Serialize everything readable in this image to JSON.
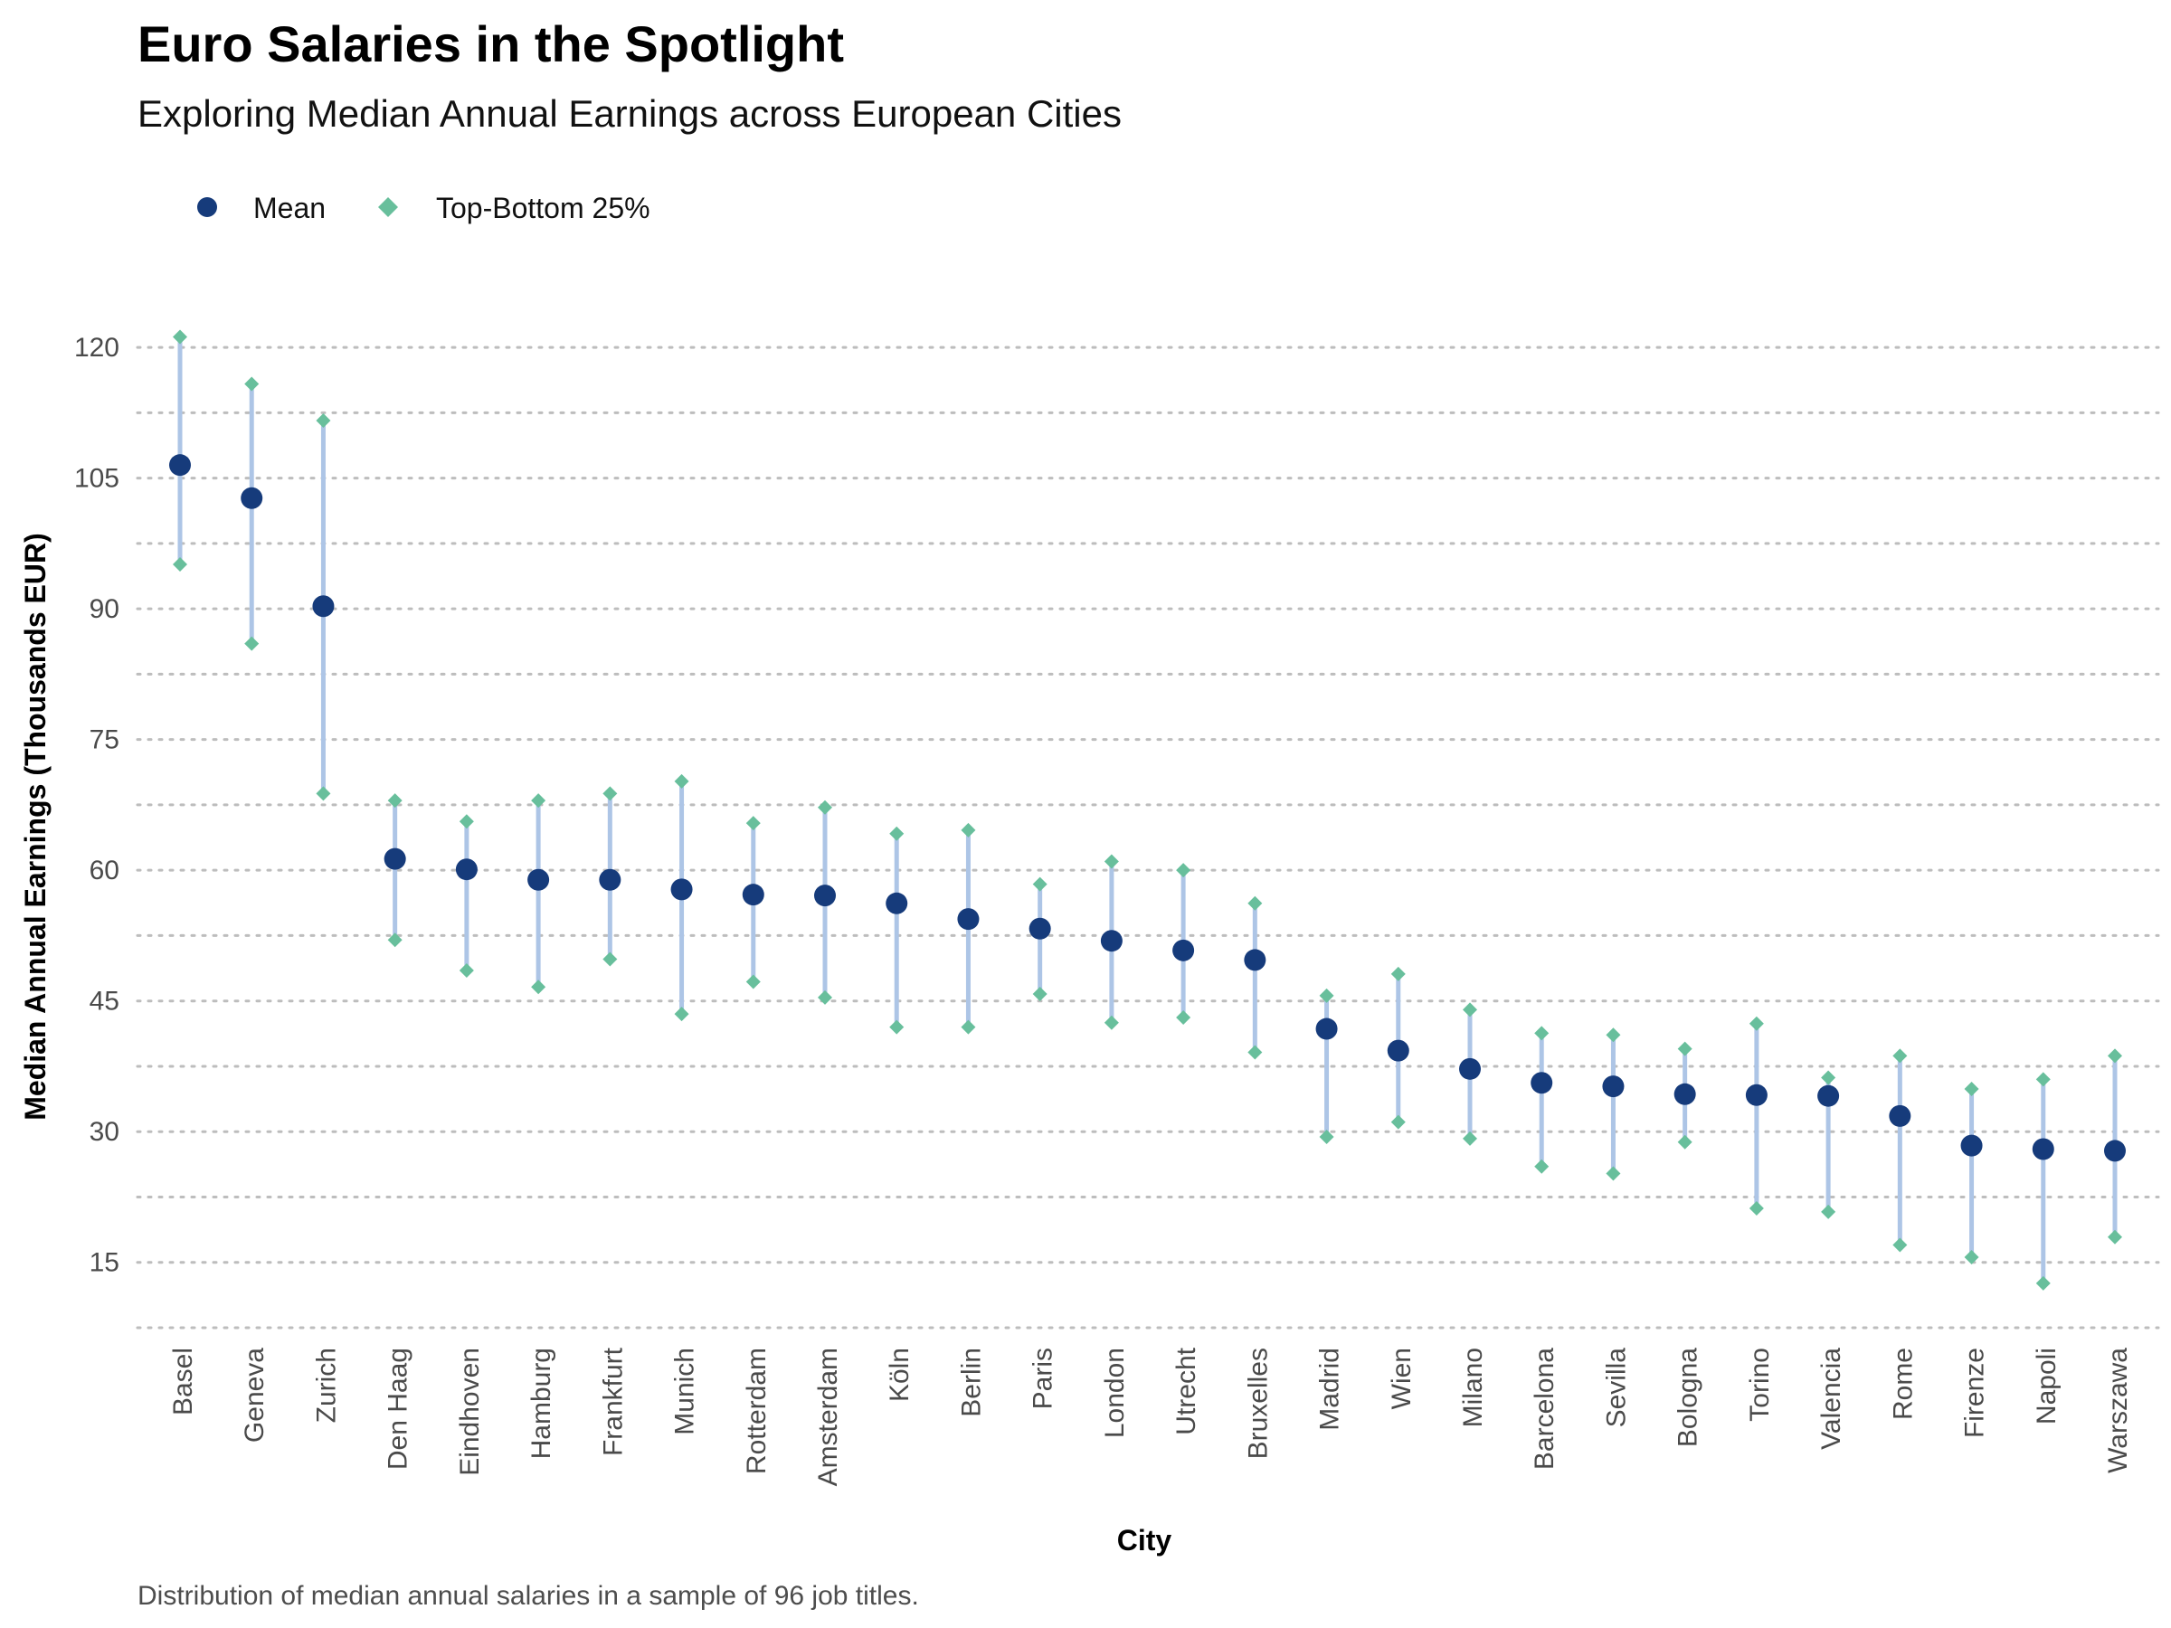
{
  "chart_data": {
    "type": "scatter",
    "title": "Euro Salaries in the Spotlight",
    "subtitle": "Exploring Median Annual Earnings across European Cities",
    "xlabel": "City",
    "ylabel": "Median Annual Earnings (Thousands EUR)",
    "caption": "Distribution of median annual salaries in a sample of 96 job titles.",
    "ylim": [
      7.5,
      122.5
    ],
    "y_ticks": [
      15,
      30,
      45,
      60,
      75,
      90,
      105,
      120
    ],
    "grid": "horizontal dotted major and minor lines",
    "legend_position": "top-left",
    "legend": [
      {
        "name": "Mean",
        "marker": "circle"
      },
      {
        "name": "Top-Bottom 25%",
        "marker": "diamond"
      }
    ],
    "colors": {
      "mean": "#163b7b",
      "quartile": "#68bf9c",
      "range": "#adc5e6",
      "grid": "#bdbdbd"
    },
    "categories": [
      "Basel",
      "Geneva",
      "Zurich",
      "Den Haag",
      "Eindhoven",
      "Hamburg",
      "Frankfurt",
      "Munich",
      "Rotterdam",
      "Amsterdam",
      "Köln",
      "Berlin",
      "Paris",
      "London",
      "Utrecht",
      "Bruxelles",
      "Madrid",
      "Wien",
      "Milano",
      "Barcelona",
      "Sevilla",
      "Bologna",
      "Torino",
      "Valencia",
      "Rome",
      "Firenze",
      "Napoli",
      "Warszawa"
    ],
    "series": [
      {
        "name": "Mean",
        "values": [
          106.5,
          102.7,
          90.3,
          61.3,
          60.1,
          58.9,
          58.9,
          57.8,
          57.2,
          57.1,
          56.2,
          54.4,
          53.3,
          51.9,
          50.8,
          49.7,
          41.8,
          39.3,
          37.2,
          35.6,
          35.2,
          34.3,
          34.2,
          34.1,
          31.8,
          28.4,
          28.0,
          27.8
        ]
      },
      {
        "name": "Top-Bottom 25%",
        "lower": [
          95.1,
          86.0,
          68.8,
          52.0,
          48.5,
          46.6,
          49.8,
          43.5,
          47.2,
          45.4,
          42.0,
          42.0,
          45.8,
          42.5,
          43.1,
          39.1,
          29.4,
          31.1,
          29.2,
          26.0,
          25.2,
          28.8,
          21.2,
          20.8,
          17.0,
          15.6,
          12.6,
          17.9
        ],
        "upper": [
          121.2,
          115.8,
          111.6,
          68.0,
          65.6,
          68.0,
          68.8,
          70.2,
          65.4,
          67.2,
          64.2,
          64.6,
          58.4,
          61.0,
          60.0,
          56.2,
          45.6,
          48.1,
          44.0,
          41.3,
          41.1,
          39.5,
          42.4,
          36.2,
          38.7,
          34.9,
          36.0,
          38.7
        ]
      }
    ]
  }
}
